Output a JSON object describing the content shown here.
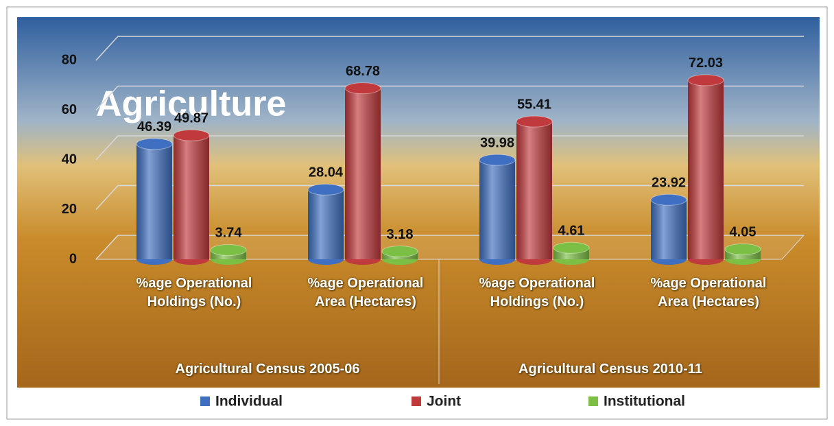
{
  "chart_data": {
    "type": "bar",
    "image_text": "Agriculture",
    "categories": [
      "%age Operational Holdings (No.)",
      "%age Operational Area (Hectares)",
      "%age Operational Holdings (No.)",
      "%age Operational Area (Hectares)"
    ],
    "groups": [
      {
        "name": "Agricultural Census 2005-06",
        "span": 2
      },
      {
        "name": "Agricultural Census 2010-11",
        "span": 2
      }
    ],
    "series": [
      {
        "name": "Individual",
        "color": "#3f6fc0",
        "values": [
          46.39,
          28.04,
          39.98,
          23.92
        ]
      },
      {
        "name": "Joint",
        "color": "#c0393c",
        "values": [
          49.87,
          68.78,
          55.41,
          72.03
        ]
      },
      {
        "name": "Institutional",
        "color": "#7cbf45",
        "values": [
          3.74,
          3.18,
          4.61,
          4.05
        ]
      }
    ],
    "ylim": [
      0,
      80
    ],
    "yticks": [
      0,
      20,
      40,
      60,
      80
    ],
    "grid": true,
    "legend": "bottom"
  }
}
